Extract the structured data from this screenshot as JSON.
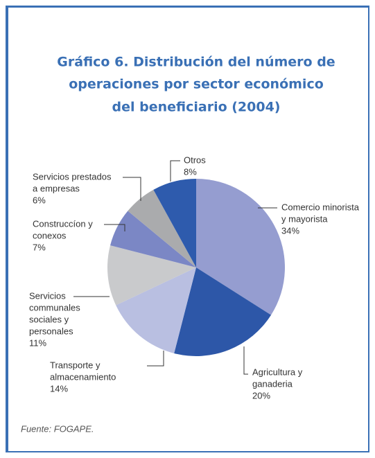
{
  "chart_data": {
    "type": "pie",
    "title": [
      "Gráfico 6. Distribución del número de",
      "operaciones por sector económico",
      "del beneficiario (2004)"
    ],
    "categories": [
      [
        "Comercio minorista",
        "y mayorista"
      ],
      [
        "Agricultura y",
        "ganaderia"
      ],
      [
        "Transporte y",
        "almacenamiento"
      ],
      [
        "Servicios",
        "communales",
        "sociales y",
        "personales"
      ],
      [
        "Construccíon y",
        "conexos"
      ],
      [
        "Servicios prestados",
        "a empresas"
      ],
      [
        "Otros"
      ]
    ],
    "values": [
      34,
      20,
      14,
      11,
      7,
      6,
      8
    ],
    "value_labels": [
      "34%",
      "20%",
      "14%",
      "11%",
      "7%",
      "6%",
      "8%"
    ],
    "colors": [
      "#959dd0",
      "#2d57a8",
      "#b9bfe1",
      "#c9cacc",
      "#7b87c5",
      "#aaabad",
      "#2e5bad"
    ],
    "source": "Fuente: FOGAPE."
  }
}
